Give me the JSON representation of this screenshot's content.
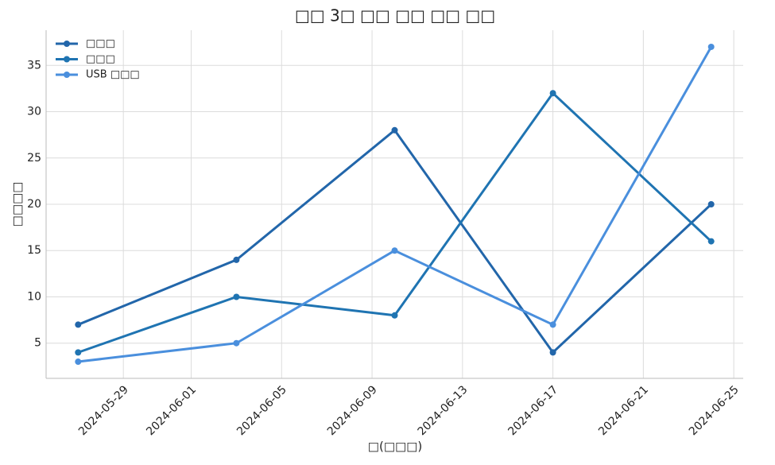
{
  "chart_data": {
    "type": "line",
    "title": "□□ 3□ □□ □□ □□ □□",
    "x_label": "□(□□□)",
    "y_label": "□□□□",
    "x": [
      "2024-05-27",
      "2024-06-03",
      "2024-06-10",
      "2024-06-17",
      "2024-06-24"
    ],
    "series": [
      {
        "name": "□□□",
        "color": "#2266aa",
        "values": [
          7,
          14,
          28,
          4,
          20
        ]
      },
      {
        "name": "□□□",
        "color": "#1f74b2",
        "values": [
          4,
          10,
          8,
          32,
          16
        ]
      },
      {
        "name": "USB □□□",
        "color": "#4a8fdd",
        "values": [
          3,
          5,
          15,
          7,
          37
        ]
      }
    ],
    "xlim": [
      "2024-05-25T14:00:00Z",
      "2024-06-25T10:00:00Z"
    ],
    "xticks": [
      "2024-05-29",
      "2024-06-01",
      "2024-06-05",
      "2024-06-09",
      "2024-06-13",
      "2024-06-17",
      "2024-06-21",
      "2024-06-25"
    ],
    "ylim": [
      1.2,
      38.8
    ],
    "yticks": [
      5,
      10,
      15,
      20,
      25,
      30,
      35
    ],
    "grid": true,
    "legend": "upper-left"
  }
}
